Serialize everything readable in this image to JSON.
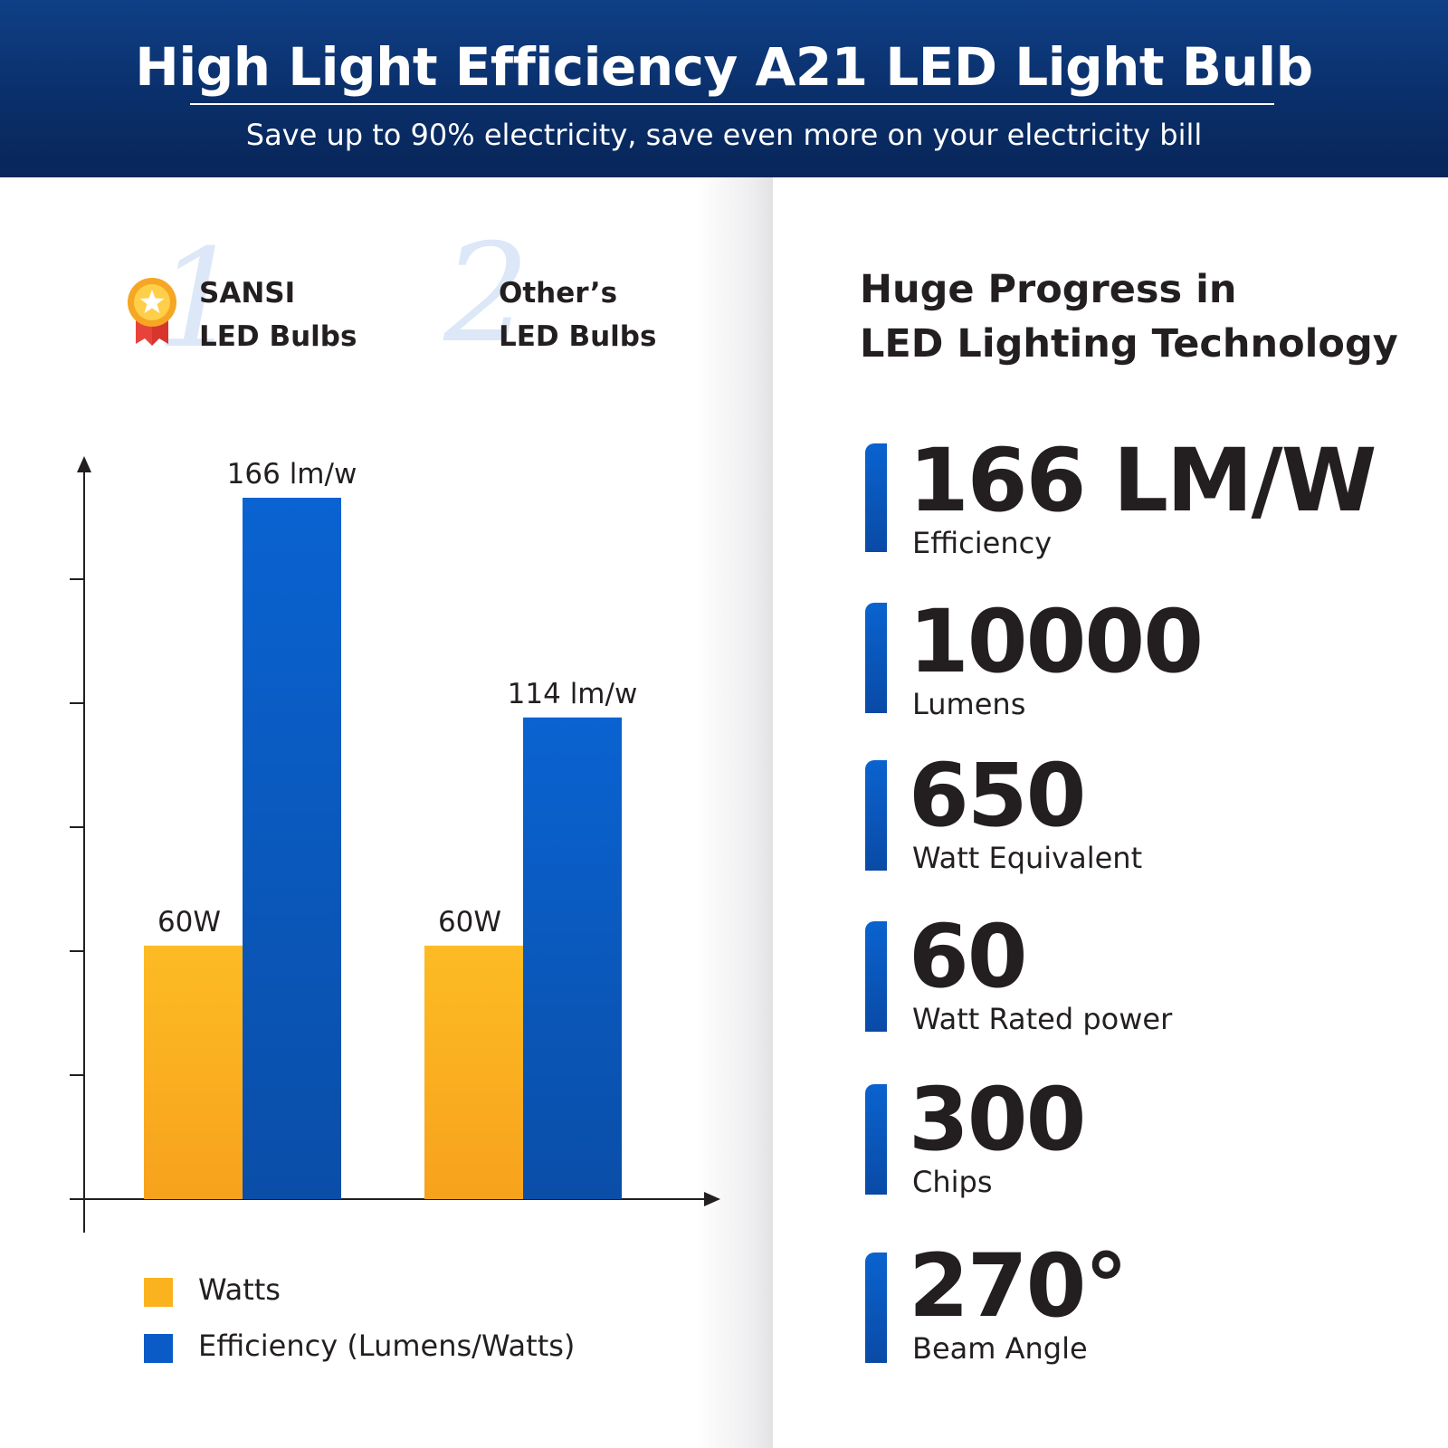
{
  "header": {
    "title": "High Light Efficiency A21 LED Light Bulb",
    "subtitle": "Save up to 90% electricity, save even more on your electricity bill"
  },
  "comparison": {
    "brand_1": {
      "rank": "1",
      "line1": "SANSI",
      "line2": "LED Bulbs"
    },
    "brand_2": {
      "rank": "2",
      "line1": "Other’s",
      "line2": "LED Bulbs"
    }
  },
  "chart_data": {
    "type": "bar",
    "categories": [
      "SANSI LED Bulbs",
      "Other’s LED Bulbs"
    ],
    "series": [
      {
        "name": "Watts",
        "values": [
          60,
          60
        ],
        "labels": [
          "60W",
          "60W"
        ],
        "color": "#fbb21f"
      },
      {
        "name": "Efficiency (Lumens/Watts)",
        "values": [
          166,
          114
        ],
        "labels": [
          "166 lm/w",
          "114 lm/w"
        ],
        "color": "#0a5ac7"
      }
    ],
    "ylim": [
      0,
      180
    ],
    "y_tick_labels": false,
    "grid": false,
    "legend_position": "bottom-left"
  },
  "specs": {
    "heading_line1": "Huge Progress in",
    "heading_line2": "LED Lighting Technology",
    "items": [
      {
        "value": "166 LM/W",
        "label": "Efficiency"
      },
      {
        "value": "10000",
        "label": "Lumens"
      },
      {
        "value": "650",
        "label": "Watt Equivalent"
      },
      {
        "value": "60",
        "label": "Watt Rated power"
      },
      {
        "value": "300",
        "label": "Chips"
      },
      {
        "value": "270°",
        "label": "Beam Angle"
      }
    ]
  },
  "colors": {
    "header_bg": "#0a2f6a",
    "accent_blue": "#0a5ac7",
    "accent_orange": "#fbb21f",
    "text_dark": "#231f20"
  }
}
